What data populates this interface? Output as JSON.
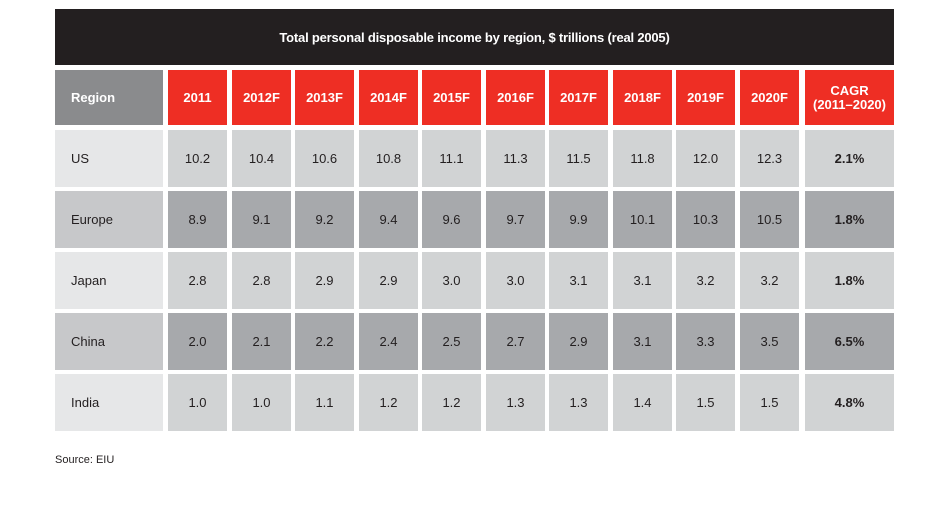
{
  "chart_data": {
    "type": "table",
    "title": "Total personal disposable income by region, $ trillions (real 2005)",
    "columns": {
      "region": "Region",
      "years": [
        "2011",
        "2012F",
        "2013F",
        "2014F",
        "2015F",
        "2016F",
        "2017F",
        "2018F",
        "2019F",
        "2020F"
      ],
      "cagr_line1": "CAGR",
      "cagr_line2": "(2011–2020)"
    },
    "rows": [
      {
        "region": "US",
        "values": [
          "10.2",
          "10.4",
          "10.6",
          "10.8",
          "11.1",
          "11.3",
          "11.5",
          "11.8",
          "12.0",
          "12.3"
        ],
        "cagr": "2.1%"
      },
      {
        "region": "Europe",
        "values": [
          "8.9",
          "9.1",
          "9.2",
          "9.4",
          "9.6",
          "9.7",
          "9.9",
          "10.1",
          "10.3",
          "10.5"
        ],
        "cagr": "1.8%"
      },
      {
        "region": "Japan",
        "values": [
          "2.8",
          "2.8",
          "2.9",
          "2.9",
          "3.0",
          "3.0",
          "3.1",
          "3.1",
          "3.2",
          "3.2"
        ],
        "cagr": "1.8%"
      },
      {
        "region": "China",
        "values": [
          "2.0",
          "2.1",
          "2.2",
          "2.4",
          "2.5",
          "2.7",
          "2.9",
          "3.1",
          "3.3",
          "3.5"
        ],
        "cagr": "6.5%"
      },
      {
        "region": "India",
        "values": [
          "1.0",
          "1.0",
          "1.1",
          "1.2",
          "1.2",
          "1.3",
          "1.3",
          "1.4",
          "1.5",
          "1.5"
        ],
        "cagr": "4.8%"
      }
    ],
    "source": "Source: EIU",
    "colors": {
      "title_bg": "#231f20",
      "header_red": "#ee2e24",
      "header_gray": "#8a8b8d"
    }
  }
}
